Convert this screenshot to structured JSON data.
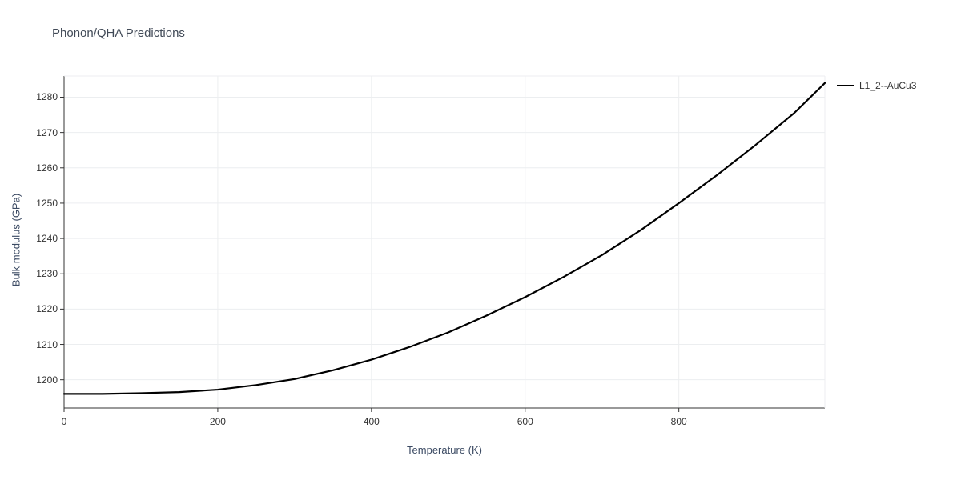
{
  "chart": {
    "type": "line",
    "title": "Phonon/QHA Predictions",
    "xlabel": "Temperature (K)",
    "ylabel": "Bulk modulus (GPa)",
    "title_fontsize": 15,
    "label_fontsize": 13,
    "tick_fontsize": 12,
    "title_color": "#414a57",
    "label_color": "#3b4a63",
    "background_color": "#ffffff",
    "grid_color": "#eceef0",
    "axis_color": "#333333",
    "line_color": "#000000",
    "line_width": 2.2,
    "xlim": [
      0,
      990
    ],
    "ylim": [
      1192,
      1286
    ],
    "xticks": [
      0,
      200,
      400,
      600,
      800
    ],
    "yticks": [
      1200,
      1210,
      1220,
      1230,
      1240,
      1250,
      1260,
      1270,
      1280
    ],
    "series": {
      "name": "L1_2--AuCu3",
      "x": [
        0,
        50,
        100,
        150,
        200,
        250,
        300,
        350,
        400,
        450,
        500,
        550,
        600,
        650,
        700,
        750,
        800,
        850,
        900,
        950,
        990
      ],
      "y": [
        1196,
        1196,
        1196.2,
        1196.5,
        1197.2,
        1198.5,
        1200.2,
        1202.7,
        1205.7,
        1209.3,
        1213.4,
        1218.2,
        1223.4,
        1229.1,
        1235.3,
        1242.3,
        1250.0,
        1258.0,
        1266.5,
        1275.5,
        1284.0
      ]
    },
    "legend": {
      "label": "L1_2--AuCu3"
    }
  }
}
